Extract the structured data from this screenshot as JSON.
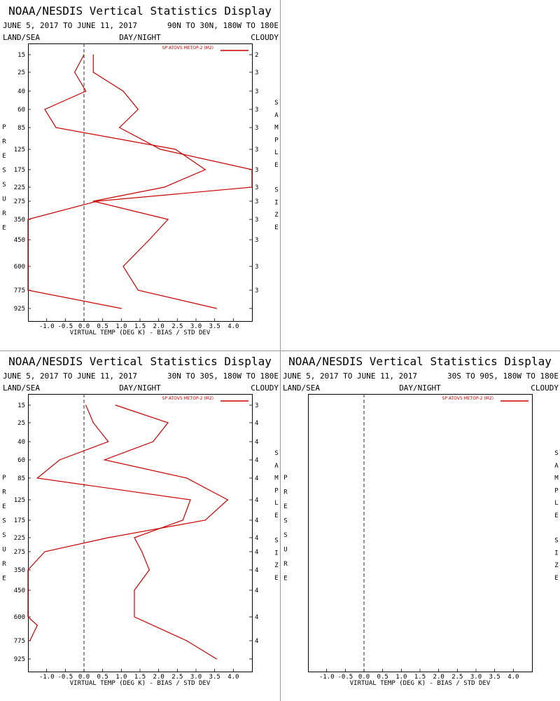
{
  "colors": {
    "series": "#cc0000",
    "frame": "#000000",
    "divider": "#999999"
  },
  "panels": [
    {
      "title": "NOAA/NESDIS Vertical Statistics Display",
      "date_range": "JUNE 5, 2017 TO JUNE 11, 2017",
      "region": "90N TO 30N, 180W TO 180E",
      "surface": "LAND/SEA",
      "time_of_day": "DAY/NIGHT",
      "sky": "CLOUDY",
      "y_axis_letters": [
        "P",
        "R",
        "E",
        "S",
        "S",
        "U",
        "R",
        "E"
      ],
      "right_axis_letters": [
        "S",
        "A",
        "M",
        "P",
        "L",
        "E",
        "",
        "S",
        "I",
        "Z",
        "E"
      ],
      "xlabel": "VIRTUAL TEMP (DEG K) - BIAS / STD DEV",
      "legend": "SP ATOVS METOP-2 (M2)",
      "sample_sizes": [
        "2",
        "3",
        "3",
        "3",
        "3",
        "3",
        "3",
        "3",
        "3",
        "3",
        "3",
        "3",
        "3"
      ]
    },
    {
      "title": "NOAA/NESDIS Vertical Statistics Display",
      "date_range": "JUNE 5, 2017 TO JUNE 11, 2017",
      "region": "30N TO 30S, 180W TO 180E",
      "surface": "LAND/SEA",
      "time_of_day": "DAY/NIGHT",
      "sky": "CLOUDY",
      "y_axis_letters": [
        "P",
        "R",
        "E",
        "S",
        "S",
        "U",
        "R",
        "E"
      ],
      "right_axis_letters": [
        "S",
        "A",
        "M",
        "P",
        "L",
        "E",
        "",
        "S",
        "I",
        "Z",
        "E"
      ],
      "xlabel": "VIRTUAL TEMP (DEG K) - BIAS / STD DEV",
      "legend": "SP ATOVS METOP-2 (M2)",
      "sample_sizes": [
        "3",
        "4",
        "4",
        "4",
        "4",
        "4",
        "4",
        "4",
        "4",
        "4",
        "4",
        "4",
        "4"
      ]
    },
    {
      "title": "NOAA/NESDIS Vertical Statistics Display",
      "date_range": "JUNE 5, 2017 TO JUNE 11, 2017",
      "region": "30S TO 90S, 180W TO 180E",
      "surface": "LAND/SEA",
      "time_of_day": "DAY/NIGHT",
      "sky": "CLOUDY",
      "y_axis_letters": [
        "P",
        "R",
        "E",
        "S",
        "S",
        "U",
        "R",
        "E"
      ],
      "right_axis_letters": [
        "S",
        "A",
        "M",
        "P",
        "L",
        "E",
        "",
        "S",
        "I",
        "Z",
        "E"
      ],
      "xlabel": "VIRTUAL TEMP (DEG K) - BIAS / STD DEV",
      "legend": "SP ATOVS METOP-2 (M2)",
      "sample_sizes": []
    }
  ],
  "chart_data": [
    {
      "type": "line",
      "title": "NOAA/NESDIS Vertical Statistics Display",
      "xlabel": "VIRTUAL TEMP (DEG K) - BIAS / STD DEV",
      "ylabel": "PRESSURE",
      "xlim": [
        -1.5,
        4.5
      ],
      "x_ticks": [
        "-1.0",
        "-0.5",
        "0.0",
        "0.5",
        "1.0",
        "1.5",
        "2.0",
        "2.5",
        "3.0",
        "3.5",
        "4.0"
      ],
      "y_levels": [
        "15",
        "25",
        "40",
        "60",
        "85",
        "125",
        "175",
        "225",
        "275",
        "350",
        "450",
        "600",
        "775",
        "925"
      ],
      "series": [
        {
          "name": "SP ATOVS METOP-2 (M2)",
          "kind": "bias",
          "x": [
            0.0,
            -0.25,
            0.05,
            -1.05,
            -0.75,
            2.45,
            3.25,
            2.15,
            0.25,
            2.25,
            1.75,
            1.05,
            1.45,
            3.55
          ],
          "y": [
            "15",
            "25",
            "40",
            "60",
            "85",
            "125",
            "175",
            "225",
            "275",
            "350",
            "450",
            "600",
            "775",
            "925"
          ]
        },
        {
          "name": "SP ATOVS METOP-2 (M2)",
          "kind": "std_dev",
          "x": [
            0.25,
            0.25,
            1.05,
            1.45,
            0.95,
            2.05,
            4.55,
            4.55,
            0.35,
            -1.5,
            -1.5,
            1.0
          ],
          "y": [
            "15",
            "25",
            "40",
            "60",
            "85",
            "125",
            "175",
            "225",
            "275",
            "350",
            "775",
            "925"
          ]
        }
      ]
    },
    {
      "type": "line",
      "title": "NOAA/NESDIS Vertical Statistics Display",
      "xlabel": "VIRTUAL TEMP (DEG K) - BIAS / STD DEV",
      "ylabel": "PRESSURE",
      "xlim": [
        -1.5,
        4.5
      ],
      "x_ticks": [
        "-1.0",
        "-0.5",
        "0.0",
        "0.5",
        "1.0",
        "1.5",
        "2.0",
        "2.5",
        "3.0",
        "3.5",
        "4.0"
      ],
      "y_levels": [
        "15",
        "25",
        "40",
        "60",
        "85",
        "125",
        "175",
        "225",
        "275",
        "350",
        "450",
        "600",
        "775",
        "925"
      ],
      "series": [
        {
          "name": "SP ATOVS METOP-2 (M2)",
          "kind": "bias",
          "x": [
            0.05,
            0.25,
            0.65,
            -0.65,
            -1.25,
            2.85,
            2.65,
            1.35,
            1.55,
            1.75,
            1.35,
            1.35,
            2.75,
            3.55
          ],
          "y": [
            "15",
            "25",
            "40",
            "60",
            "85",
            "125",
            "175",
            "225",
            "275",
            "350",
            "450",
            "600",
            "775",
            "925"
          ]
        },
        {
          "name": "SP ATOVS METOP-2 (M2)",
          "kind": "std_dev",
          "x": [
            0.85,
            2.25,
            1.85,
            0.55,
            2.75,
            3.85,
            3.25,
            0.65,
            -1.05,
            -1.55,
            -1.5,
            -1.25,
            -1.45
          ],
          "y": [
            "15",
            "25",
            "40",
            "60",
            "85",
            "125",
            "175",
            "225",
            "275",
            "350",
            "600",
            "600",
            "775"
          ]
        }
      ]
    },
    {
      "type": "line",
      "title": "NOAA/NESDIS Vertical Statistics Display",
      "xlabel": "VIRTUAL TEMP (DEG K) - BIAS / STD DEV",
      "xlim": [
        -1.5,
        4.5
      ],
      "x_ticks": [
        "-1.0",
        "-0.5",
        "0.0",
        "0.5",
        "1.0",
        "1.5",
        "2.0",
        "2.5",
        "3.0",
        "3.5",
        "4.0"
      ],
      "series": []
    }
  ]
}
